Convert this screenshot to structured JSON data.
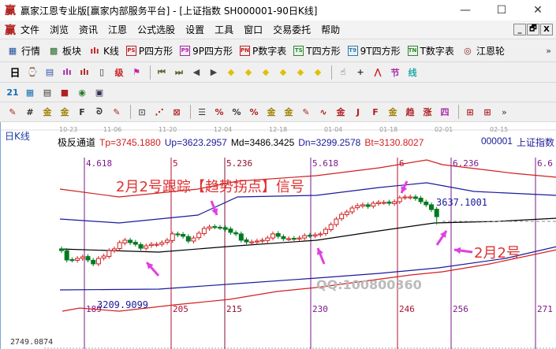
{
  "window": {
    "logo": "赢",
    "title": "赢家江恩专业版[赢家内部服务平台] - [上证指数  SH000001-90日K线]",
    "minimize": "—",
    "maximize": "☐",
    "close": "✕"
  },
  "menu": {
    "logo": "赢",
    "items": [
      "文件",
      "浏览",
      "资讯",
      "江恩",
      "公式选股",
      "设置",
      "工具",
      "窗口",
      "交易委托",
      "帮助"
    ],
    "mdi": [
      "_",
      "🗗",
      "X"
    ]
  },
  "toolbar1": {
    "items": [
      {
        "icon": "grid-icon",
        "glyph": "▦",
        "label": "行情"
      },
      {
        "icon": "blocks-icon",
        "glyph": "▩",
        "label": "板块"
      },
      {
        "icon": "kline-icon",
        "glyph": "ılı",
        "label": "K线"
      },
      {
        "icon": "ps-icon",
        "glyph": "PS",
        "label": "P四方形"
      },
      {
        "icon": "p9-icon",
        "glyph": "P9",
        "label": "9P四方形"
      },
      {
        "icon": "pn-icon",
        "glyph": "PN",
        "label": "P数字表"
      },
      {
        "icon": "ts-icon",
        "glyph": "TS",
        "label": "T四方形"
      },
      {
        "icon": "t9-icon",
        "glyph": "T9",
        "label": "9T四方形"
      },
      {
        "icon": "tn-icon",
        "glyph": "TN",
        "label": "T数字表"
      },
      {
        "icon": "gann-wheel-icon",
        "glyph": "◎",
        "label": "江恩轮"
      }
    ],
    "more": "»"
  },
  "toolbar2": {
    "period": "日",
    "icons": [
      {
        "name": "clock-icon",
        "glyph": "⌚",
        "color": "#3355aa"
      },
      {
        "name": "notes-icon",
        "glyph": "▤",
        "color": "#3355aa"
      },
      {
        "name": "bars3-icon",
        "glyph": "ılı",
        "color": "#aa22aa"
      },
      {
        "name": "bars9-icon",
        "glyph": "ılı",
        "color": "#aa2222"
      },
      {
        "name": "candle-icon",
        "glyph": "▯",
        "color": "#333"
      },
      {
        "name": "reverse-icon",
        "glyph": "级",
        "color": "#cc2222"
      },
      {
        "name": "flag-icon",
        "glyph": "⚑",
        "color": "#cc22aa"
      },
      {
        "name": "first-icon",
        "glyph": "⏮",
        "color": "#556b2f"
      },
      {
        "name": "last-icon",
        "glyph": "⏭",
        "color": "#556b2f"
      },
      {
        "name": "prev-icon",
        "glyph": "◀",
        "color": "#444"
      },
      {
        "name": "next-icon",
        "glyph": "▶",
        "color": "#444"
      },
      {
        "name": "left-diamond-icon",
        "glyph": "◆",
        "color": "#e0c000"
      },
      {
        "name": "right-diamond-icon",
        "glyph": "◆",
        "color": "#e0c000"
      },
      {
        "name": "expand-diamond-icon",
        "glyph": "◆",
        "color": "#e0c000"
      },
      {
        "name": "shrink-diamond-icon",
        "glyph": "◆",
        "color": "#e0c000"
      },
      {
        "name": "zoom-in-diamond-icon",
        "glyph": "◆",
        "color": "#e0c000"
      },
      {
        "name": "zoom-out-diamond-icon",
        "glyph": "◆",
        "color": "#e0c000"
      },
      {
        "name": "hand-icon",
        "glyph": "☝",
        "color": "#333"
      },
      {
        "name": "crosshair-icon",
        "glyph": "+",
        "color": "#333"
      },
      {
        "name": "wave-icon",
        "glyph": "⋀",
        "color": "#cc2222"
      },
      {
        "name": "section-icon",
        "glyph": "节",
        "color": "#aa22aa"
      },
      {
        "name": "lines-icon",
        "glyph": "线",
        "color": "#22aaaa"
      }
    ]
  },
  "toolbar3": {
    "icons": [
      {
        "name": "calendar-icon",
        "glyph": "21",
        "color": "#1a6fb0"
      },
      {
        "name": "calculator-icon",
        "glyph": "▦",
        "color": "#1a6fb0"
      },
      {
        "name": "document-icon",
        "glyph": "▤",
        "color": "#333"
      },
      {
        "name": "save-icon",
        "glyph": "■",
        "color": "#b02020"
      },
      {
        "name": "network-icon",
        "glyph": "◉",
        "color": "#2a7a2a"
      },
      {
        "name": "export-icon",
        "glyph": "▣",
        "color": "#335"
      }
    ]
  },
  "toolbar4": {
    "icons": [
      {
        "name": "pen-icon",
        "glyph": "✎",
        "color": "#b02020"
      },
      {
        "name": "hash-icon",
        "glyph": "#",
        "color": "#333"
      },
      {
        "name": "gold1-icon",
        "glyph": "金",
        "color": "#a08000"
      },
      {
        "name": "gold2-icon",
        "glyph": "金",
        "color": "#a08000"
      },
      {
        "name": "f-icon",
        "glyph": "F",
        "color": "#333"
      },
      {
        "name": "spiral-icon",
        "glyph": "ᘐ",
        "color": "#333"
      },
      {
        "name": "pen-ruler-icon",
        "glyph": "✎",
        "color": "#b02020"
      },
      {
        "name": "box-icon",
        "glyph": "⊡",
        "color": "#555"
      },
      {
        "name": "fan-icon",
        "glyph": "⋰",
        "color": "#b02020"
      },
      {
        "name": "grid-fan-icon",
        "glyph": "⊠",
        "color": "#b02020"
      },
      {
        "name": "ruler-icon",
        "glyph": "☰",
        "color": "#333"
      },
      {
        "name": "percent-slash-icon",
        "glyph": "%",
        "color": "#b02020"
      },
      {
        "name": "percent-icon",
        "glyph": "%",
        "color": "#333"
      },
      {
        "name": "percent-lines-icon",
        "glyph": "%",
        "color": "#b02020"
      },
      {
        "name": "gold-circle-icon",
        "glyph": "金",
        "color": "#a08000"
      },
      {
        "name": "gold-lines-icon",
        "glyph": "金",
        "color": "#a08000"
      },
      {
        "name": "pen-lines-icon",
        "glyph": "✎",
        "color": "#b02020"
      },
      {
        "name": "wave-lines-icon",
        "glyph": "∿",
        "color": "#b02020"
      },
      {
        "name": "gold-box-icon",
        "glyph": "金",
        "color": "#b02020"
      },
      {
        "name": "j-angle-icon",
        "glyph": "J",
        "color": "#b02020"
      },
      {
        "name": "f-angle-icon",
        "glyph": "F",
        "color": "#b02020"
      },
      {
        "name": "gold-angle-icon",
        "glyph": "金",
        "color": "#a08000"
      },
      {
        "name": "trend-angle-icon",
        "glyph": "趋",
        "color": "#b02020"
      },
      {
        "name": "rising-angle-icon",
        "glyph": "涨",
        "color": "#b02020"
      },
      {
        "name": "four-angle-icon",
        "glyph": "四",
        "color": "#aa22aa"
      },
      {
        "name": "grid-yellow-icon",
        "glyph": "⊞",
        "color": "#b02020"
      },
      {
        "name": "grid-yellow2-icon",
        "glyph": "⊞",
        "color": "#b02020"
      }
    ],
    "more": "»"
  },
  "chart": {
    "period_label": "日K线",
    "indicator_name": "极反通道",
    "tp": "Tp=3745.1880",
    "up": "Up=3623.2957",
    "md": "Md=3486.3425",
    "dn": "Dn=3299.2578",
    "bt": "Bt=3130.8027",
    "code": "000001",
    "name": "上证指数",
    "dates": [
      "10-23",
      "11-06",
      "11-20",
      "12-04",
      "12-18",
      "01-04",
      "01-18",
      "02-01",
      "02-15"
    ],
    "fib_top": [
      "4.618",
      "5",
      "5.236",
      "5.618",
      "6",
      "6.236",
      "6.6"
    ],
    "fib_bottom": [
      "189",
      "205",
      "215",
      "230",
      "246",
      "256",
      "271"
    ],
    "low_label": "3209.9099",
    "high_label": "3637.1001",
    "axis_min_label": "2749.0874",
    "annotation_title": "2月2号跟踪【趋势拐点】信号",
    "annotation_date": "2月2号",
    "watermark_qq": "QQ:100800360",
    "colors": {
      "up": "#d02020",
      "down": "#007a20",
      "channel_outer": "#d02020",
      "channel_inner": "#1a1a9a",
      "mid": "#000000",
      "arrow": "#e040e0",
      "annotation": "#e03030"
    },
    "closes": [
      3299,
      3244,
      3244,
      3253,
      3262,
      3244,
      3221,
      3253,
      3267,
      3299,
      3309,
      3346,
      3360,
      3346,
      3336,
      3313,
      3327,
      3336,
      3336,
      3346,
      3360,
      3397,
      3392,
      3383,
      3355,
      3373,
      3401,
      3429,
      3438,
      3438,
      3434,
      3424,
      3406,
      3397,
      3360,
      3350,
      3350,
      3355,
      3360,
      3373,
      3397,
      3383,
      3369,
      3369,
      3369,
      3373,
      3387,
      3387,
      3392,
      3397,
      3424,
      3452,
      3484,
      3512,
      3526,
      3549,
      3563,
      3568,
      3558,
      3577,
      3582,
      3582,
      3577,
      3586,
      3609,
      3614,
      3614,
      3605,
      3586,
      3568,
      3540,
      3498
    ]
  }
}
